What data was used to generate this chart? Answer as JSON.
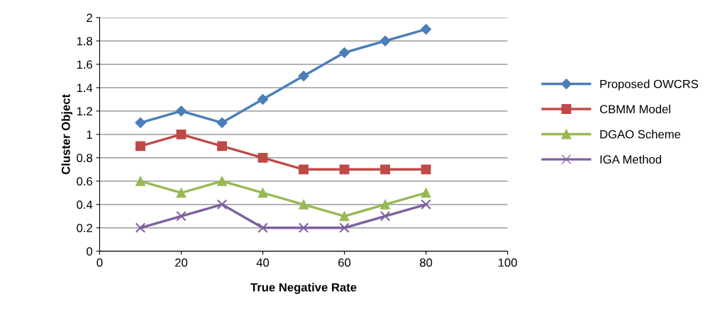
{
  "chart_data": {
    "type": "line",
    "xlabel": "True Negative Rate",
    "ylabel": "Cluster Object",
    "x": [
      10,
      20,
      30,
      40,
      50,
      60,
      70,
      80
    ],
    "series": [
      {
        "name": "Proposed OWCRS",
        "color": "#4a7ebb",
        "marker": "diamond",
        "values": [
          1.1,
          1.2,
          1.1,
          1.3,
          1.5,
          1.7,
          1.8,
          1.9
        ]
      },
      {
        "name": "CBMM Model",
        "color": "#be4b48",
        "marker": "square",
        "values": [
          0.9,
          1.0,
          0.9,
          0.8,
          0.7,
          0.7,
          0.7,
          0.7
        ]
      },
      {
        "name": "DGAO Scheme",
        "color": "#98b954",
        "marker": "triangle",
        "values": [
          0.6,
          0.5,
          0.6,
          0.5,
          0.4,
          0.3,
          0.4,
          0.5
        ]
      },
      {
        "name": "IGA Method",
        "color": "#7d60a0",
        "marker": "cross",
        "values": [
          0.2,
          0.3,
          0.4,
          0.2,
          0.2,
          0.2,
          0.3,
          0.4
        ]
      }
    ],
    "xlim": [
      0,
      100
    ],
    "xticks": [
      0,
      20,
      40,
      60,
      80,
      100
    ],
    "ylim": [
      0,
      2
    ],
    "yticks": [
      0,
      0.2,
      0.4,
      0.6,
      0.8,
      1,
      1.2,
      1.4,
      1.6,
      1.8,
      2
    ],
    "grid": "y",
    "legend": "right",
    "line_style": "solid"
  }
}
